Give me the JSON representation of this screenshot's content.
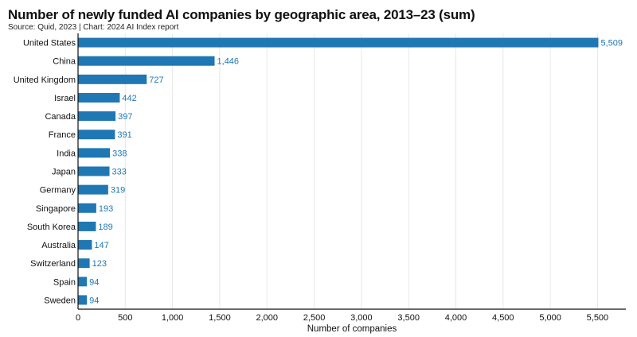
{
  "title": "Number of newly funded AI companies by geographic area, 2013–23 (sum)",
  "subtitle": "Source: Quid, 2023 | Chart: 2024 AI Index report",
  "colors": {
    "bar": "#1f77b4",
    "label": "#1f77b4",
    "grid": "#e8e8e8",
    "axis": "#111111"
  },
  "chart_data": {
    "type": "bar",
    "orientation": "horizontal",
    "title": "Number of newly funded AI companies by geographic area, 2013–23 (sum)",
    "xlabel": "Number of companies",
    "ylabel": "",
    "xlim": [
      0,
      5800
    ],
    "xticks": [
      0,
      500,
      1000,
      1500,
      2000,
      2500,
      3000,
      3500,
      4000,
      4500,
      5000,
      5500
    ],
    "grid": true,
    "categories": [
      "United States",
      "China",
      "United Kingdom",
      "Israel",
      "Canada",
      "France",
      "India",
      "Japan",
      "Germany",
      "Singapore",
      "South Korea",
      "Australia",
      "Switzerland",
      "Spain",
      "Sweden"
    ],
    "values": [
      5509,
      1446,
      727,
      442,
      397,
      391,
      338,
      333,
      319,
      193,
      189,
      147,
      123,
      94,
      94
    ]
  }
}
